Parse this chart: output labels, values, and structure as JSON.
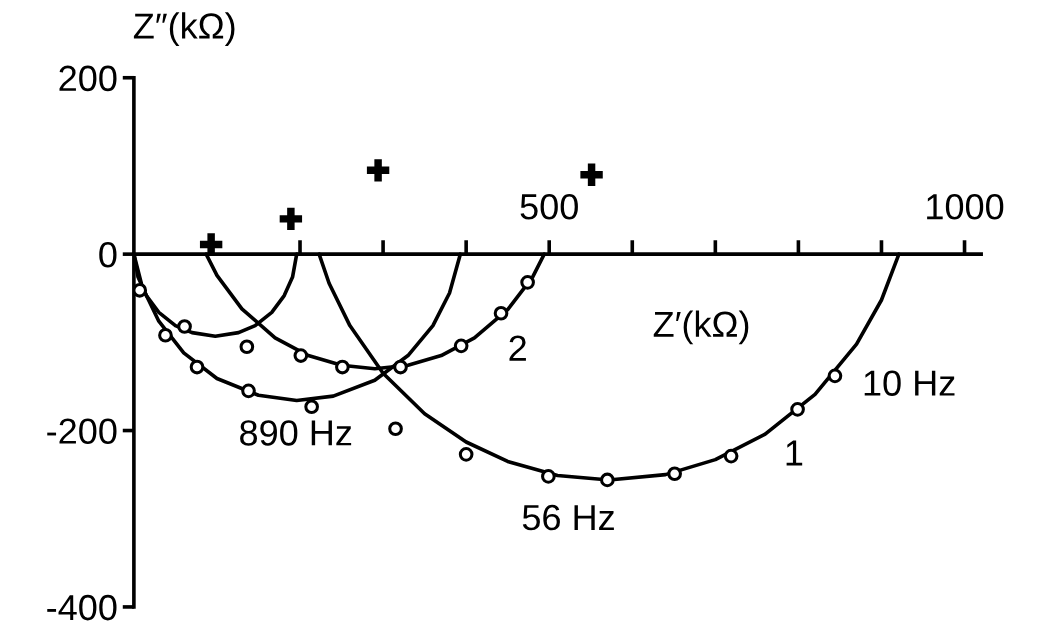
{
  "chart_data": {
    "type": "line",
    "xlabel": "Z′(kΩ)",
    "ylabel": "Z″(kΩ)",
    "xlim": [
      0,
      1020
    ],
    "ylim": [
      -400,
      200
    ],
    "xticks": [
      {
        "value": 200,
        "label": null
      },
      {
        "value": 300,
        "label": null
      },
      {
        "value": 400,
        "label": null
      },
      500,
      {
        "value": 600,
        "label": null
      },
      {
        "value": 700,
        "label": null
      },
      {
        "value": 800,
        "label": null
      },
      {
        "value": 900,
        "label": null
      },
      1000
    ],
    "yticks": [
      -400,
      -200,
      0,
      200
    ],
    "grid": false,
    "legend": false,
    "marker": "none",
    "line_style": "solid",
    "series": [
      {
        "color": "#000000",
        "x": [
          0,
          5,
          15,
          30,
          50,
          70,
          98,
          126,
          146,
          166,
          181,
          191,
          196
        ],
        "values": [
          0,
          -26,
          -47,
          -66,
          -81,
          -89,
          -93,
          -89,
          -81,
          -66,
          -47,
          -26,
          0
        ]
      },
      {
        "color": "#000000",
        "x": [
          87,
          100,
          130,
          170,
          210,
          250,
          290,
          330,
          370,
          410,
          450,
          480,
          494
        ],
        "values": [
          0,
          -24,
          -62,
          -95,
          -115,
          -126,
          -130,
          -126,
          -115,
          -95,
          -63,
          -26,
          0
        ]
      },
      {
        "color": "#000000",
        "x": [
          0,
          10,
          30,
          60,
          100,
          150,
          196,
          240,
          290,
          330,
          360,
          380,
          393
        ],
        "values": [
          0,
          -37,
          -76,
          -112,
          -141,
          -160,
          -166,
          -161,
          -143,
          -115,
          -81,
          -44,
          0
        ]
      },
      {
        "color": "#000000",
        "x": [
          223,
          235,
          260,
          300,
          350,
          400,
          450,
          510,
          572,
          640,
          700,
          760,
          820,
          870,
          900,
          921
        ],
        "values": [
          0,
          -33,
          -81,
          -135,
          -181,
          -213,
          -235,
          -251,
          -256,
          -250,
          -233,
          -204,
          -159,
          -102,
          -52,
          0
        ]
      },
      {
        "type": "scatter",
        "marker": "circle",
        "color": "#000000",
        "x": [
          7,
          61,
          38,
          76,
          138,
          214,
          136,
          201,
          251,
          321,
          315,
          394,
          442,
          474,
          400,
          499,
          570,
          651,
          719,
          799,
          844
        ],
        "values": [
          -41,
          -82,
          -92,
          -128,
          -155,
          -173,
          -105,
          -115,
          -128,
          -128,
          -198,
          -104,
          -67,
          -32,
          -227,
          -252,
          -256,
          -249,
          -229,
          -176,
          -138
        ]
      },
      {
        "type": "scatter",
        "marker": "cross",
        "color": "#000000",
        "x": [
          93,
          189,
          294,
          551
        ],
        "values": [
          11,
          40,
          95,
          90
        ]
      }
    ],
    "annotations": [
      "890 Hz",
      "56 Hz",
      "10 Hz",
      "1",
      "2"
    ]
  }
}
